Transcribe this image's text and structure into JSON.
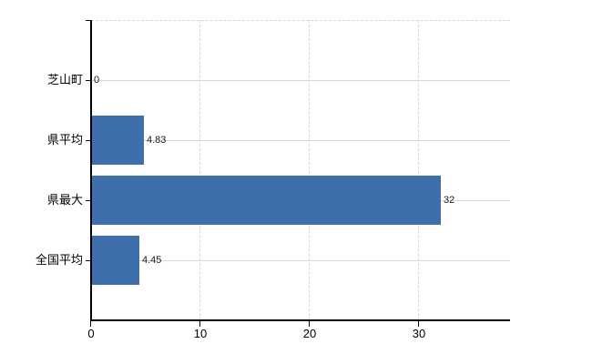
{
  "chart_data": {
    "type": "bar",
    "orientation": "horizontal",
    "title": "",
    "xlabel": "",
    "ylabel": "",
    "categories": [
      "芝山町",
      "県平均",
      "県最大",
      "全国平均"
    ],
    "values": [
      0,
      4.83,
      32,
      4.45
    ],
    "value_labels": [
      "0",
      "4.83",
      "32",
      "4.45"
    ],
    "xticks": [
      0,
      10,
      20,
      30
    ],
    "xtick_labels": [
      "0",
      "10",
      "20",
      "30"
    ],
    "xlim": [
      0,
      38.3
    ],
    "grid": "on",
    "legend": "none",
    "colors": {
      "bar": "#3e6eac",
      "gridline": "#d8d8d8",
      "axis": "#000000",
      "text": "#000000"
    }
  }
}
